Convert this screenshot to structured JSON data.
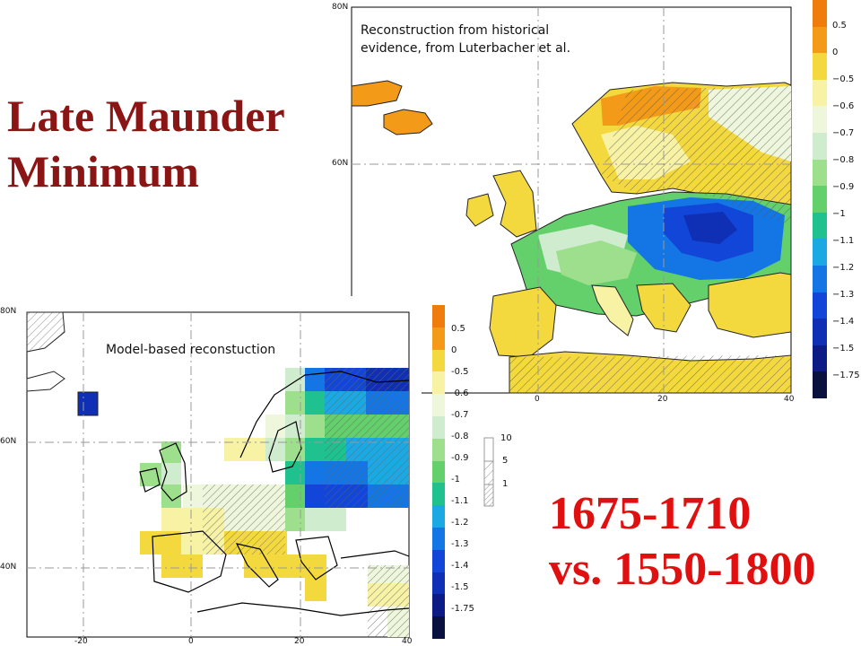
{
  "title": {
    "line1": "Late Maunder",
    "line2": "Minimum"
  },
  "period": {
    "line1": "1675-1710",
    "line2": "vs. 1550-1800"
  },
  "colors": {
    "title": "#8b1414",
    "period": "#e01010",
    "land": "#ffffff",
    "coast": "#000000",
    "grid": "#999999"
  },
  "colorbar": {
    "levels": [
      "0.5",
      "0",
      "−0.5",
      "−0.6",
      "−0.7",
      "−0.8",
      "−0.9",
      "−1",
      "−1.1",
      "−1.2",
      "−1.3",
      "−1.4",
      "−1.5",
      "−1.75"
    ],
    "levels_model": [
      "0.5",
      "0",
      "-0.5",
      "-0.6",
      "-0.7",
      "-0.8",
      "-0.9",
      "-1",
      "-1.1",
      "-1.2",
      "-1.3",
      "-1.4",
      "-1.5",
      "-1.75"
    ],
    "colors": [
      "#f07c0c",
      "#f39a18",
      "#f4d93e",
      "#f7f2a4",
      "#eef7dc",
      "#cfeccf",
      "#9edf8e",
      "#63d06c",
      "#1fc28f",
      "#1aa9e2",
      "#1476e4",
      "#1146d8",
      "#0f2fb4",
      "#0c1c84",
      "#09123e"
    ]
  },
  "hatch_legend": {
    "labels": [
      "10",
      "5",
      "1"
    ]
  },
  "historical_map": {
    "caption_line1": "Reconstruction from historical",
    "caption_line2": "evidence, from Luterbacher et al.",
    "lat_labels": [
      "80N",
      "60N"
    ],
    "lon_labels": [
      "0",
      "20",
      "40"
    ]
  },
  "model_map": {
    "caption": "Model-based reconstuction",
    "lat_labels": [
      "80N",
      "60N",
      "40N"
    ],
    "lon_labels": [
      "-20",
      "0",
      "20",
      "40"
    ]
  }
}
